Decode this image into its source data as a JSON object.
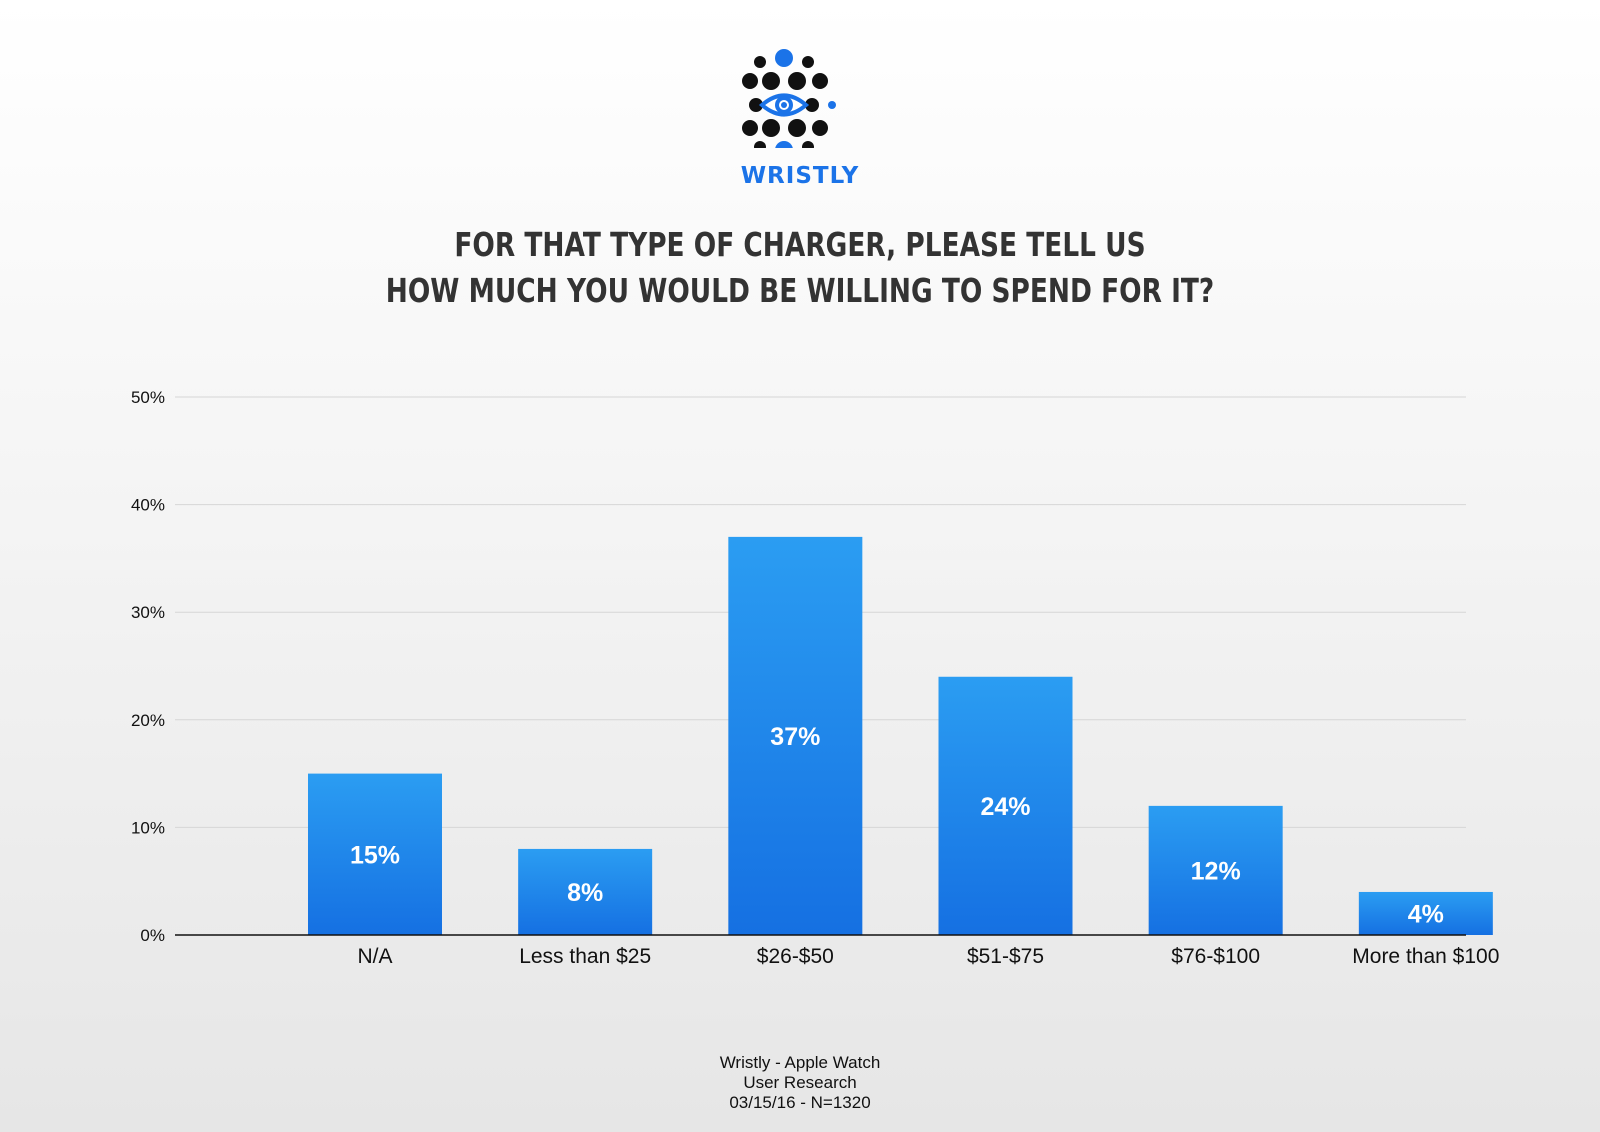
{
  "brand": {
    "name": "WRISTLY"
  },
  "colors": {
    "accent": "#1b73e8",
    "bar_top": "#2b9df2",
    "bar_bottom": "#1570e2",
    "logo_dark": "#111111"
  },
  "chart_data": {
    "type": "bar",
    "title_lines": [
      "FOR THAT TYPE OF CHARGER, PLEASE TELL US",
      "HOW MUCH YOU WOULD BE WILLING TO SPEND FOR IT?"
    ],
    "categories": [
      "N/A",
      "Less than $25",
      "$26-$50",
      "$51-$75",
      "$76-$100",
      "More than $100"
    ],
    "values": [
      15,
      8,
      37,
      24,
      12,
      4
    ],
    "data_labels": [
      "15%",
      "8%",
      "37%",
      "24%",
      "12%",
      "4%"
    ],
    "ylim": [
      0,
      50
    ],
    "yticks": [
      0,
      10,
      20,
      30,
      40,
      50
    ],
    "ytick_labels": [
      "0%",
      "10%",
      "20%",
      "30%",
      "40%",
      "50%"
    ],
    "grid": true,
    "legend": "none"
  },
  "footer": {
    "lines": [
      "Wristly - Apple Watch",
      "User Research",
      "03/15/16 - N=1320"
    ]
  }
}
